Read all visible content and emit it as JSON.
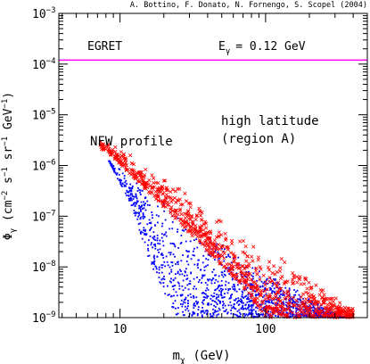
{
  "chart_data": {
    "type": "scatter",
    "credit": "A. Bottino, F. Donato, N. Fornengo, S. Scopel (2004)",
    "xlabel": {
      "base": "m",
      "sub": "χ",
      "unit": " (GeV)"
    },
    "ylabel": {
      "base": "Φ",
      "sub": "γ",
      "unit_parts": [
        {
          "t": " (cm"
        },
        {
          "t": "−2",
          "sup": true
        },
        {
          "t": " s"
        },
        {
          "t": "−1",
          "sup": true
        },
        {
          "t": " sr"
        },
        {
          "t": "−1",
          "sup": true
        },
        {
          "t": " GeV"
        },
        {
          "t": "−1",
          "sup": true
        },
        {
          "t": ")"
        }
      ]
    },
    "xscale": "log",
    "yscale": "log",
    "xlim": [
      3.8,
      500
    ],
    "ylim": [
      1e-09,
      0.001
    ],
    "x_ticks": [
      {
        "value": 10,
        "label": "10"
      },
      {
        "value": 100,
        "label": "100"
      }
    ],
    "y_ticks": [
      {
        "value": 1e-09,
        "base": "10",
        "exp": "−9"
      },
      {
        "value": 1e-08,
        "base": "10",
        "exp": "−8"
      },
      {
        "value": 1e-07,
        "base": "10",
        "exp": "−7"
      },
      {
        "value": 1e-06,
        "base": "10",
        "exp": "−6"
      },
      {
        "value": 1e-05,
        "base": "10",
        "exp": "−5"
      },
      {
        "value": 0.0001,
        "base": "10",
        "exp": "−4"
      },
      {
        "value": 0.001,
        "base": "10",
        "exp": "−3"
      }
    ],
    "egret": {
      "label": "EGRET",
      "value": 0.00012,
      "color": "#ff00ff"
    },
    "energy_label": {
      "base": "E",
      "sub": "γ",
      "rest": "= 0.12 GeV",
      "color": "#0000ff"
    },
    "annotations": [
      "NFW profile",
      "high latitude",
      "(region A)"
    ],
    "series": [
      {
        "marker": "dot",
        "color": "#0000ff",
        "band": {
          "upper": [
            [
              7.5,
              1.6e-06
            ],
            [
              20,
              2e-07
            ],
            [
              40,
              5e-08
            ],
            [
              100,
              8e-09
            ],
            [
              200,
              2.5e-09
            ],
            [
              350,
              1e-09
            ]
          ],
          "lower": [
            [
              8,
              1.6e-06
            ],
            [
              12,
              1.5e-07
            ],
            [
              15,
              2e-08
            ],
            [
              20,
              3e-09
            ],
            [
              25,
              1e-09
            ]
          ]
        }
      },
      {
        "marker": "cross",
        "color": "#ff0000",
        "band": {
          "upper": [
            [
              7,
              3.8e-06
            ],
            [
              20,
              7e-07
            ],
            [
              50,
              9e-08
            ],
            [
              100,
              3e-08
            ],
            [
              200,
              8e-09
            ],
            [
              400,
              1.5e-09
            ]
          ],
          "lower": [
            [
              8,
              2e-06
            ],
            [
              20,
              1.5e-07
            ],
            [
              40,
              2e-08
            ],
            [
              70,
              4e-09
            ],
            [
              100,
              1e-09
            ]
          ]
        }
      }
    ],
    "colors": {
      "dots": "#0000ff",
      "crosses": "#ff0000",
      "egret_line": "#ff00ff",
      "axes": "#000000"
    }
  }
}
